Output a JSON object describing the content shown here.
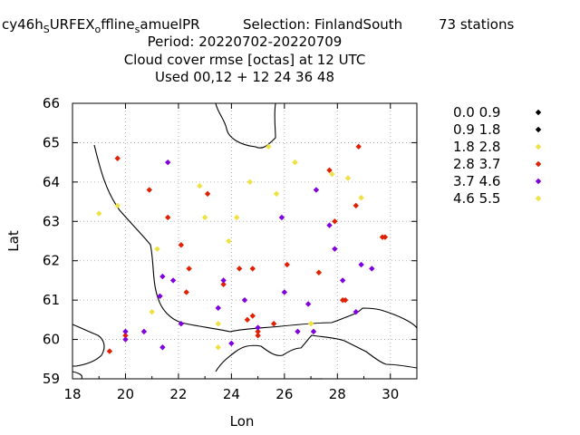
{
  "chart_data": {
    "type": "scatter",
    "title_lines": [
      "cy46h_SURFEX_offline_samuelPR   Selection: FinlandSouth     73 stations",
      "Period: 20220702-20220709",
      "Cloud cover rmse [octas] at  12 UTC",
      "Used  00,12  + 12 24 36 48"
    ],
    "title_parts": {
      "experiment_a": "cy46h",
      "sub_a": "S",
      "experiment_b": "URFEX",
      "sub_b": "o",
      "experiment_c": "ffline",
      "sub_c": "s",
      "experiment_d": "amuelPR",
      "selection": "Selection: FinlandSouth",
      "stations": "73 stations"
    },
    "xlabel": "Lon",
    "ylabel": "Lat",
    "xlim": [
      18,
      31
    ],
    "ylim": [
      59,
      66
    ],
    "xticks": [
      "18",
      "20",
      "22",
      "24",
      "26",
      "28",
      "30"
    ],
    "yticks": [
      "59",
      "60",
      "61",
      "62",
      "63",
      "64",
      "65",
      "66"
    ],
    "grid": true,
    "legend_position": "right",
    "legend": [
      {
        "label": "0.0 0.9",
        "color": "#000000"
      },
      {
        "label": "0.9 1.8",
        "color": "#000000"
      },
      {
        "label": "1.8 2.8",
        "color": "#f0e040"
      },
      {
        "label": "2.8 3.7",
        "color": "#e02000"
      },
      {
        "label": "3.7 4.6",
        "color": "#8000e0"
      },
      {
        "label": "4.6 5.5",
        "color": "#f0e040"
      }
    ],
    "series": [
      {
        "name": "1.8 2.8",
        "color": "#f0e040",
        "points": [
          [
            19.0,
            63.2
          ],
          [
            19.7,
            63.4
          ],
          [
            21.2,
            62.3
          ],
          [
            21.0,
            60.7
          ],
          [
            22.8,
            63.9
          ],
          [
            23.0,
            63.1
          ],
          [
            23.9,
            62.5
          ],
          [
            24.2,
            63.1
          ],
          [
            24.7,
            64.0
          ],
          [
            25.7,
            63.7
          ],
          [
            25.4,
            64.9
          ],
          [
            26.4,
            64.5
          ],
          [
            28.4,
            64.1
          ],
          [
            28.9,
            63.6
          ],
          [
            27.8,
            64.2
          ],
          [
            23.5,
            60.4
          ],
          [
            23.5,
            59.8
          ],
          [
            27.0,
            60.4
          ]
        ]
      },
      {
        "name": "2.8 3.7",
        "color": "#e02000",
        "points": [
          [
            19.7,
            64.6
          ],
          [
            20.9,
            63.8
          ],
          [
            21.6,
            63.1
          ],
          [
            23.1,
            63.7
          ],
          [
            22.1,
            62.4
          ],
          [
            22.4,
            61.8
          ],
          [
            22.3,
            61.2
          ],
          [
            23.7,
            61.4
          ],
          [
            24.3,
            61.8
          ],
          [
            24.8,
            61.8
          ],
          [
            26.1,
            61.9
          ],
          [
            27.3,
            61.7
          ],
          [
            27.9,
            63.0
          ],
          [
            27.7,
            64.3
          ],
          [
            28.7,
            63.4
          ],
          [
            28.8,
            64.9
          ],
          [
            29.7,
            62.6
          ],
          [
            29.8,
            62.6
          ],
          [
            28.2,
            61.0
          ],
          [
            28.3,
            61.0
          ],
          [
            24.6,
            60.5
          ],
          [
            24.8,
            60.6
          ],
          [
            25.0,
            60.1
          ],
          [
            25.0,
            60.2
          ],
          [
            25.6,
            60.4
          ],
          [
            19.4,
            59.7
          ],
          [
            20.0,
            60.1
          ]
        ]
      },
      {
        "name": "3.7 4.6",
        "color": "#8000e0",
        "points": [
          [
            21.6,
            64.5
          ],
          [
            21.4,
            61.6
          ],
          [
            21.8,
            61.5
          ],
          [
            21.3,
            61.1
          ],
          [
            23.7,
            61.5
          ],
          [
            23.5,
            60.8
          ],
          [
            24.5,
            61.0
          ],
          [
            22.1,
            60.4
          ],
          [
            20.7,
            60.2
          ],
          [
            20.0,
            60.0
          ],
          [
            20.0,
            60.2
          ],
          [
            21.4,
            59.8
          ],
          [
            24.0,
            59.9
          ],
          [
            25.0,
            60.3
          ],
          [
            26.0,
            61.2
          ],
          [
            26.5,
            60.2
          ],
          [
            27.1,
            60.2
          ],
          [
            26.9,
            60.9
          ],
          [
            25.9,
            63.1
          ],
          [
            27.2,
            63.8
          ],
          [
            27.7,
            62.9
          ],
          [
            27.9,
            62.3
          ],
          [
            28.2,
            61.5
          ],
          [
            28.7,
            60.7
          ],
          [
            28.9,
            61.9
          ],
          [
            29.3,
            61.8
          ]
        ]
      }
    ]
  }
}
